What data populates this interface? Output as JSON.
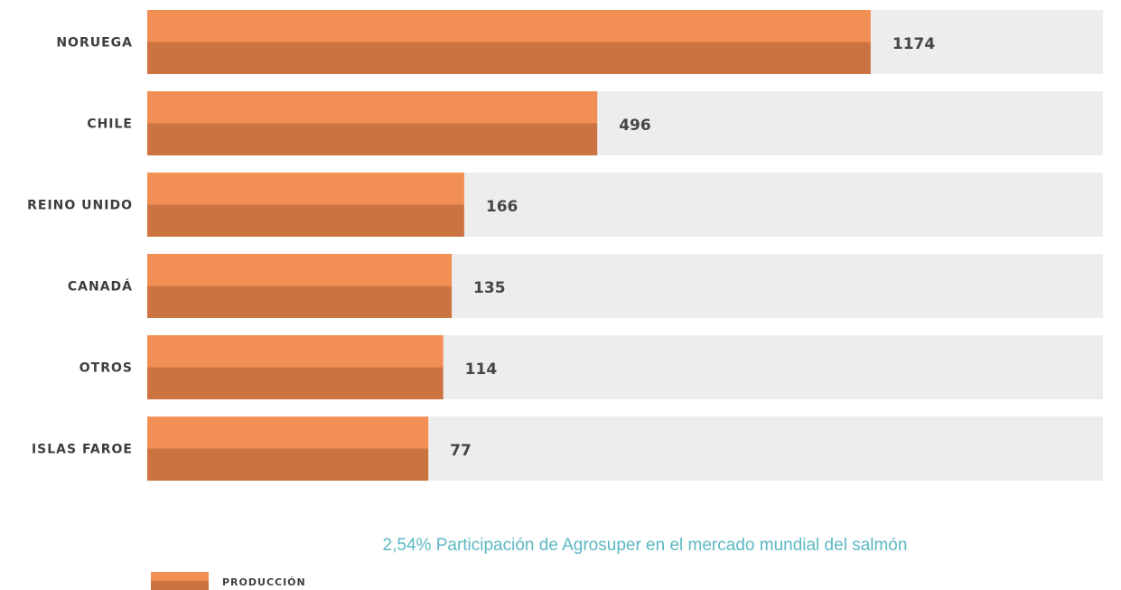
{
  "chart_data": {
    "type": "hbar",
    "subtitle": "2,54% Participación de Agrosuper en el mercado mundial del salmón",
    "categories": [
      "NORUEGA",
      "CHILE",
      "REINO UNIDO",
      "CANADÁ",
      "OTROS",
      "ISLAS FAROE"
    ],
    "series": [
      {
        "name": "PRODUCCIÓN",
        "color": "#f28f55",
        "shade_color": "#cc7441",
        "values": [
          1174,
          496,
          166,
          135,
          114,
          77
        ]
      }
    ],
    "xlim": [
      -620,
      1750
    ],
    "track_color": "#ededed"
  }
}
